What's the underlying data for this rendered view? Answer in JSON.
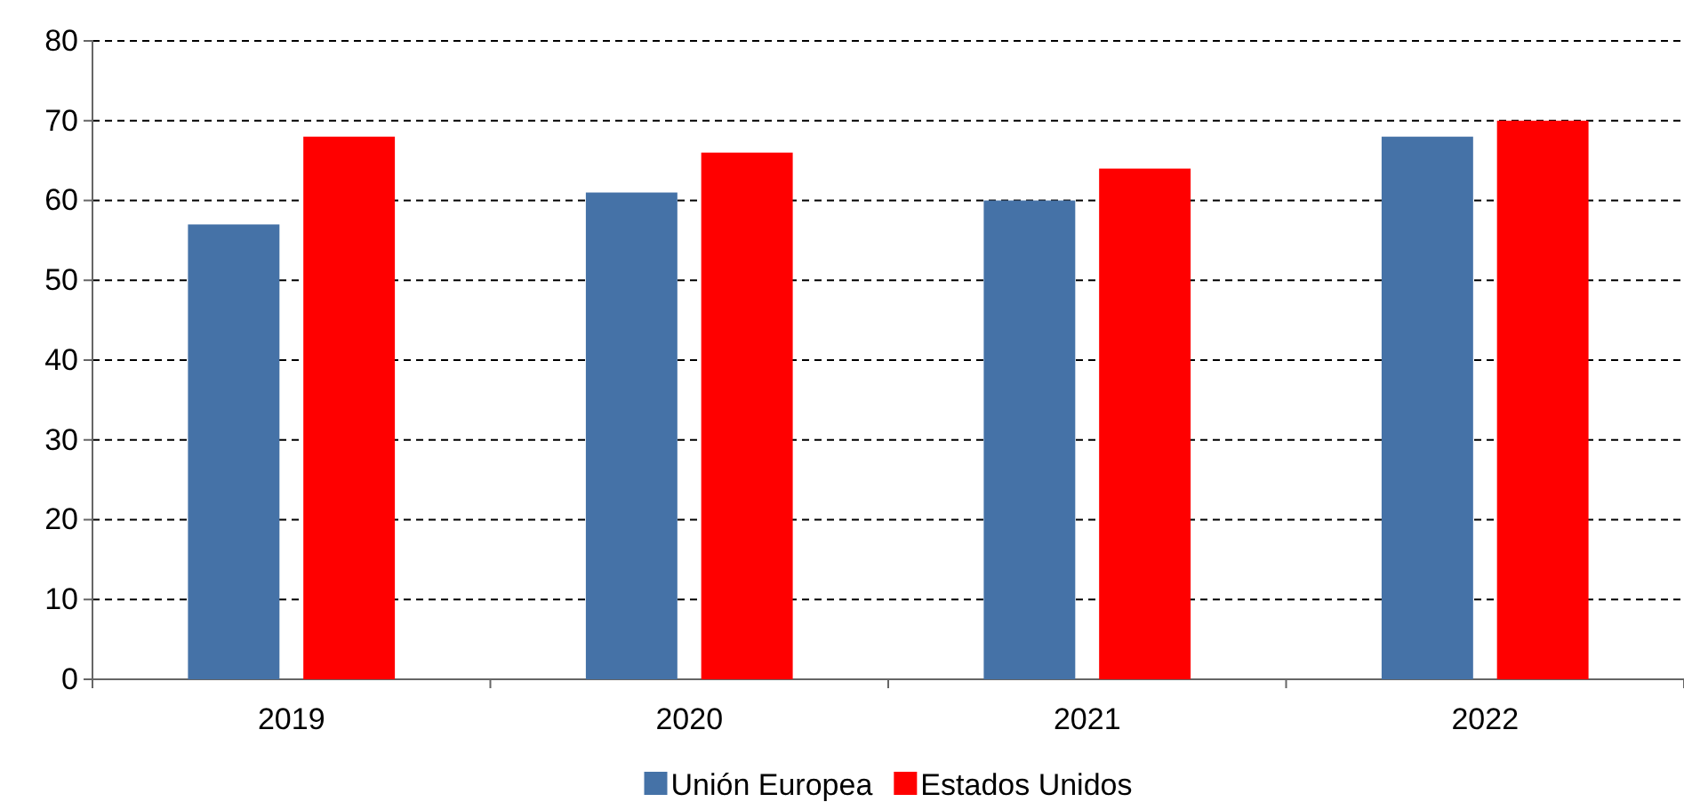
{
  "chart_data": {
    "type": "bar",
    "categories": [
      "2019",
      "2020",
      "2021",
      "2022"
    ],
    "series": [
      {
        "name": "Unión Europea",
        "color": "#4572a7",
        "values": [
          57,
          61,
          60,
          68
        ]
      },
      {
        "name": "Estados Unidos",
        "color": "#ff0000",
        "values": [
          68,
          66,
          64,
          70
        ]
      }
    ],
    "ylim": [
      0,
      80
    ],
    "yticks": [
      0,
      10,
      20,
      30,
      40,
      50,
      60,
      70,
      80
    ],
    "grid": "y",
    "legend": "bottom"
  }
}
